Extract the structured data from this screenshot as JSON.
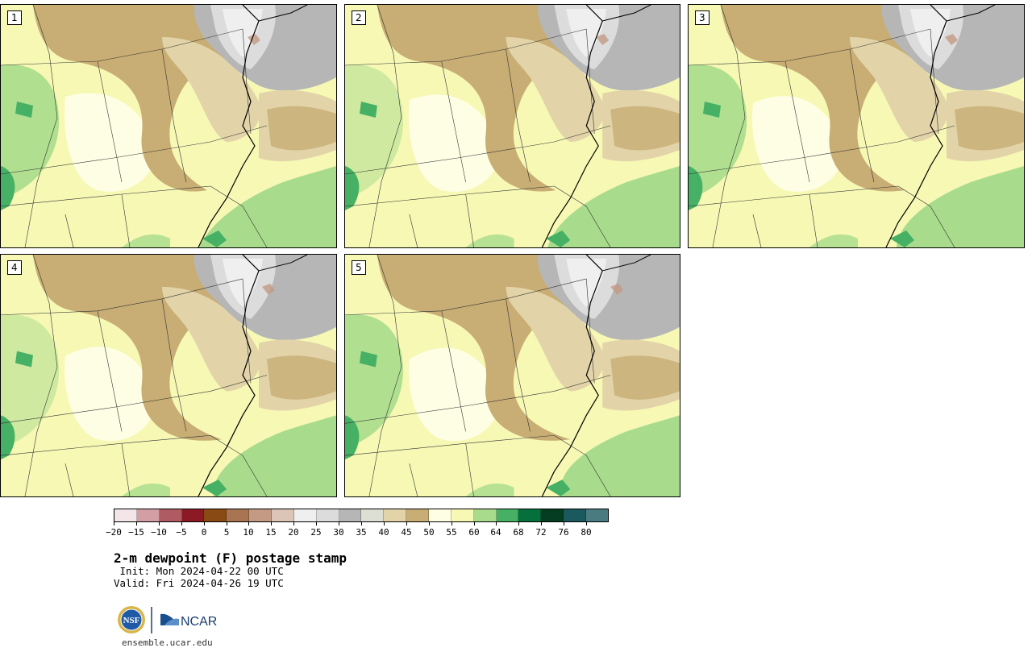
{
  "panels": [
    {
      "label": "1"
    },
    {
      "label": "2"
    },
    {
      "label": "3"
    },
    {
      "label": "4"
    },
    {
      "label": "5"
    }
  ],
  "colorbar": {
    "levels": [
      "-20",
      "-15",
      "-10",
      "-5",
      "0",
      "5",
      "10",
      "15",
      "20",
      "25",
      "30",
      "35",
      "40",
      "45",
      "50",
      "55",
      "60",
      "64",
      "68",
      "72",
      "76",
      "80"
    ],
    "colors": [
      "#f4e6e8",
      "#d39ea4",
      "#b05a62",
      "#8b1a24",
      "#8a4a14",
      "#a87452",
      "#c49a84",
      "#dcc4b6",
      "#efefef",
      "#dcdcdc",
      "#b6b6b6",
      "#dedfd4",
      "#e2d4a8",
      "#c8ad74",
      "#fefee4",
      "#f6f8b4",
      "#a8dc8c",
      "#46b064",
      "#06703c",
      "#053d22",
      "#1a5a5e",
      "#4a7b80"
    ]
  },
  "title": "2-m dewpoint (F) postage stamp",
  "init": " Init: Mon 2024-04-22 00 UTC",
  "valid": "Valid: Fri 2024-04-26 19 UTC",
  "logos": {
    "nsf": "NSF",
    "ncar": "NCAR"
  },
  "website": "ensemble.ucar.edu"
}
